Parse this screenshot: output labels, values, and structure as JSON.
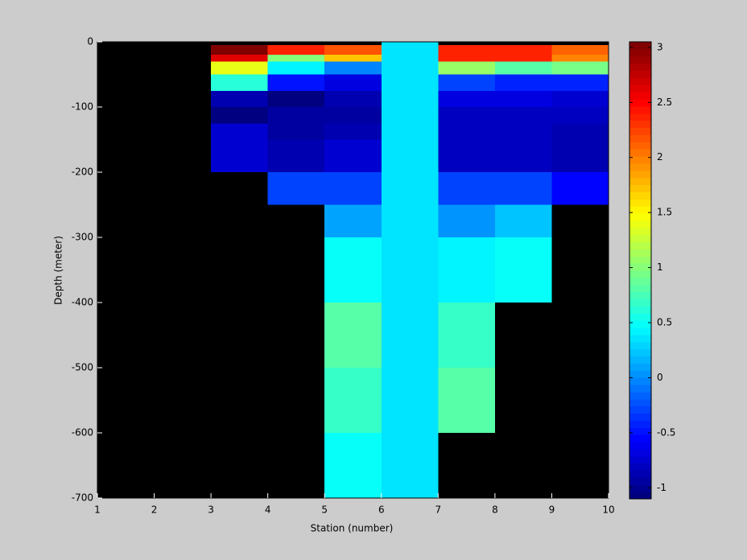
{
  "chart_data": {
    "type": "heatmap",
    "xlabel": "Station (number)",
    "ylabel": "Depth (meter)",
    "x": [
      1,
      2,
      3,
      4,
      5,
      6,
      7,
      8,
      9,
      10
    ],
    "y": [
      0,
      -5,
      -20,
      -30,
      -50,
      -75,
      -100,
      -125,
      -150,
      -200,
      -250,
      -300,
      -400,
      -500,
      -600,
      -700
    ],
    "z": [
      [
        null,
        null,
        null,
        null,
        null,
        0.35,
        null,
        null,
        null
      ],
      [
        null,
        null,
        3.0,
        2.4,
        2.2,
        0.35,
        2.4,
        2.4,
        2.1
      ],
      [
        null,
        null,
        2.6,
        1.0,
        1.7,
        0.35,
        2.4,
        2.4,
        2.0
      ],
      [
        null,
        null,
        1.4,
        0.45,
        0.0,
        0.35,
        1.1,
        0.8,
        0.95
      ],
      [
        null,
        null,
        0.6,
        -0.5,
        -0.65,
        0.35,
        -0.3,
        -0.4,
        -0.45
      ],
      [
        null,
        null,
        -0.9,
        -1.05,
        -0.9,
        0.35,
        -0.65,
        -0.65,
        -0.75
      ],
      [
        null,
        null,
        -1.05,
        -0.95,
        -0.95,
        0.35,
        -0.8,
        -0.8,
        -0.8
      ],
      [
        null,
        null,
        -0.75,
        -0.95,
        -0.85,
        0.35,
        -0.8,
        -0.8,
        -0.9
      ],
      [
        null,
        null,
        -0.75,
        -0.9,
        -0.75,
        0.35,
        -0.8,
        -0.8,
        -0.9
      ],
      [
        null,
        null,
        null,
        -0.3,
        -0.3,
        0.35,
        -0.3,
        -0.3,
        -0.55
      ],
      [
        null,
        null,
        null,
        null,
        0.1,
        0.35,
        0.05,
        0.2,
        null
      ],
      [
        null,
        null,
        null,
        null,
        0.5,
        0.35,
        0.45,
        0.5,
        null
      ],
      [
        null,
        null,
        null,
        null,
        0.8,
        0.35,
        0.7,
        null,
        null
      ],
      [
        null,
        null,
        null,
        null,
        0.7,
        0.35,
        0.8,
        null,
        null
      ],
      [
        null,
        null,
        null,
        null,
        0.5,
        0.35,
        null,
        null,
        null
      ]
    ],
    "xlim": [
      1,
      10
    ],
    "xticks": [
      1,
      2,
      3,
      4,
      5,
      6,
      7,
      8,
      9,
      10
    ],
    "ylim": [
      -700,
      0
    ],
    "yticks": [
      0,
      -100,
      -200,
      -300,
      -400,
      -500,
      -600,
      -700
    ],
    "clim": [
      -1.1,
      3.05
    ],
    "cticks": [
      -1,
      -0.5,
      0,
      0.5,
      1,
      1.5,
      2,
      2.5,
      3
    ],
    "colormap": "jet",
    "missing_color": "#000000"
  }
}
